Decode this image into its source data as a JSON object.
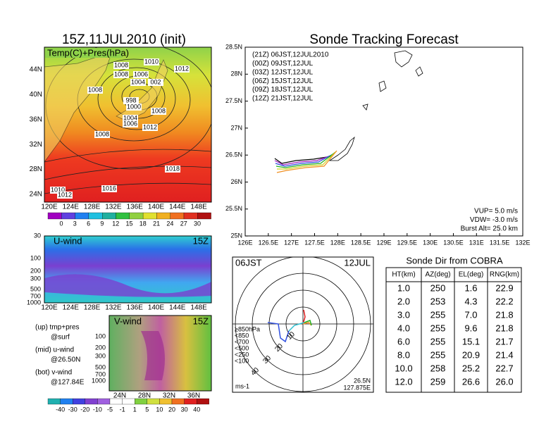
{
  "surface_map": {
    "title": "15Z,11JUL2010 (init)",
    "label": "Temp(C)+Pres(hPa)",
    "yticks": [
      "44N",
      "40N",
      "36N",
      "32N",
      "28N",
      "24N"
    ],
    "xticks": [
      "120E",
      "124E",
      "128E",
      "132E",
      "136E",
      "140E",
      "144E",
      "148E"
    ],
    "isobars": [
      "1010",
      "1008",
      "1012",
      "1008",
      "1006",
      "1004",
      "002",
      "1008",
      "998",
      "1000",
      "1008",
      "1004",
      "1006",
      "1012",
      "1008",
      "1018",
      "1016",
      "1010",
      "1012"
    ],
    "colorbar": [
      "0",
      "3",
      "6",
      "9",
      "12",
      "15",
      "18",
      "21",
      "24",
      "27",
      "30"
    ]
  },
  "u_wind": {
    "label": "U-wind",
    "time": "15Z",
    "yticks": [
      "30",
      "100",
      "200",
      "300",
      "500",
      "700",
      "1000"
    ],
    "xticks": [
      "120E",
      "124E",
      "128E",
      "132E",
      "136E",
      "140E",
      "144E",
      "148E"
    ]
  },
  "v_wind": {
    "label": "V-wind",
    "time": "15Z",
    "yticks": [
      "100",
      "200",
      "300",
      "500",
      "700",
      "1000"
    ],
    "xticks": [
      "24N",
      "28N",
      "32N",
      "36N"
    ],
    "colorbar": [
      "-40",
      "-30",
      "-20",
      "-10",
      "-5",
      "-1",
      "1",
      "5",
      "10",
      "20",
      "30",
      "40"
    ]
  },
  "notes": [
    [
      "(up) tmp+pres",
      "@surf"
    ],
    [
      "(mid) u-wind",
      "@26.50N"
    ],
    [
      "(bot) v-wind",
      "@127.84E"
    ]
  ],
  "track": {
    "title": "Sonde Tracking Forecast",
    "legend": [
      "(21Z) 06JST,12JUL2010",
      "(00Z) 09JST,12JUL",
      "(03Z) 12JST,12JUL",
      "(06Z) 15JST,12JUL",
      "(09Z) 18JST,12JUL",
      "(12Z) 21JST,12JUL"
    ],
    "yticks": [
      "28.5N",
      "28N",
      "27.5N",
      "27N",
      "26.5N",
      "26N",
      "25.5N",
      "25N"
    ],
    "xticks": [
      "126E",
      "126.5E",
      "127E",
      "127.5E",
      "128E",
      "128.5E",
      "129E",
      "129.5E",
      "130E",
      "130.5E",
      "131E",
      "131.5E",
      "132E"
    ],
    "params": [
      "VUP= 5.0 m/s",
      "VDW= -3.0 m/s",
      "Burst Alt= 25.0 km"
    ]
  },
  "hodograph": {
    "time": "06JST",
    "date": "12JUL",
    "levels": [
      "≥850hPa",
      "<850",
      "<700",
      "<500",
      "<250",
      "<100"
    ],
    "rings": [
      "10",
      "20",
      "30",
      "40"
    ],
    "unit": "ms-1",
    "position": [
      "26.5N",
      "127.875E"
    ]
  },
  "table": {
    "title": "Sonde Dir from COBRA",
    "header": [
      "HT(km)",
      "AZ(deg)",
      "EL(deg)",
      "RNG(km)"
    ],
    "rows": [
      [
        "1.0",
        "250",
        "1.6",
        "22.9"
      ],
      [
        "2.0",
        "253",
        "4.3",
        "22.2"
      ],
      [
        "3.0",
        "255",
        "7.0",
        "21.8"
      ],
      [
        "4.0",
        "255",
        "9.6",
        "21.8"
      ],
      [
        "6.0",
        "255",
        "15.1",
        "21.7"
      ],
      [
        "8.0",
        "255",
        "20.9",
        "21.4"
      ],
      [
        "10.0",
        "258",
        "25.2",
        "22.7"
      ],
      [
        "12.0",
        "259",
        "26.6",
        "26.0"
      ]
    ]
  }
}
